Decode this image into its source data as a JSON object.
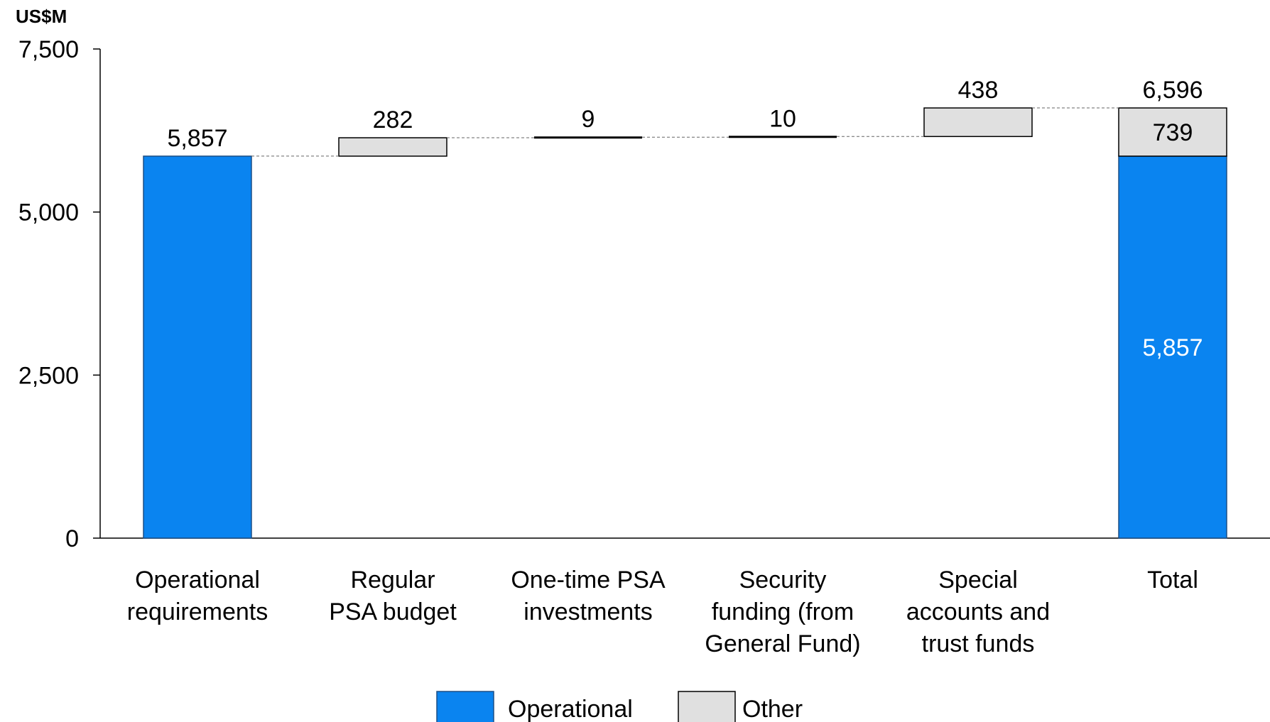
{
  "chart_data": {
    "type": "bar",
    "subtype": "waterfall",
    "unit_label": "US$M",
    "y_range": [
      0,
      7500
    ],
    "y_ticks": [
      "0",
      "2,500",
      "5,000",
      "7,500"
    ],
    "y_tick_values": [
      0,
      2500,
      5000,
      7500
    ],
    "categories": [
      [
        "Operational",
        "requirements"
      ],
      [
        "Regular",
        "PSA budget"
      ],
      [
        "One-time PSA",
        "investments"
      ],
      [
        "Security",
        "funding (from",
        "General Fund)"
      ],
      [
        "Special",
        "accounts and",
        "trust funds"
      ],
      [
        "Total"
      ]
    ],
    "steps": [
      {
        "series": "Operational",
        "base": 0,
        "value": 5857,
        "label": "5,857"
      },
      {
        "series": "Other",
        "base": 5857,
        "value": 282,
        "label": "282"
      },
      {
        "series": "Other",
        "base": 6139,
        "value": 9,
        "label": "9"
      },
      {
        "series": "Other",
        "base": 6148,
        "value": 10,
        "label": "10"
      },
      {
        "series": "Other",
        "base": 6158,
        "value": 438,
        "label": "438"
      }
    ],
    "total": {
      "label": "6,596",
      "value": 6596,
      "segments": [
        {
          "series": "Operational",
          "base": 0,
          "value": 5857,
          "label": "5,857"
        },
        {
          "series": "Other",
          "base": 5857,
          "value": 739,
          "label": "739"
        }
      ]
    },
    "legend": [
      {
        "name": "Operational",
        "color": "#0a84f0"
      },
      {
        "name": "Other",
        "color": "#e0e0e0"
      }
    ],
    "legend_position": "bottom",
    "grid": false
  }
}
